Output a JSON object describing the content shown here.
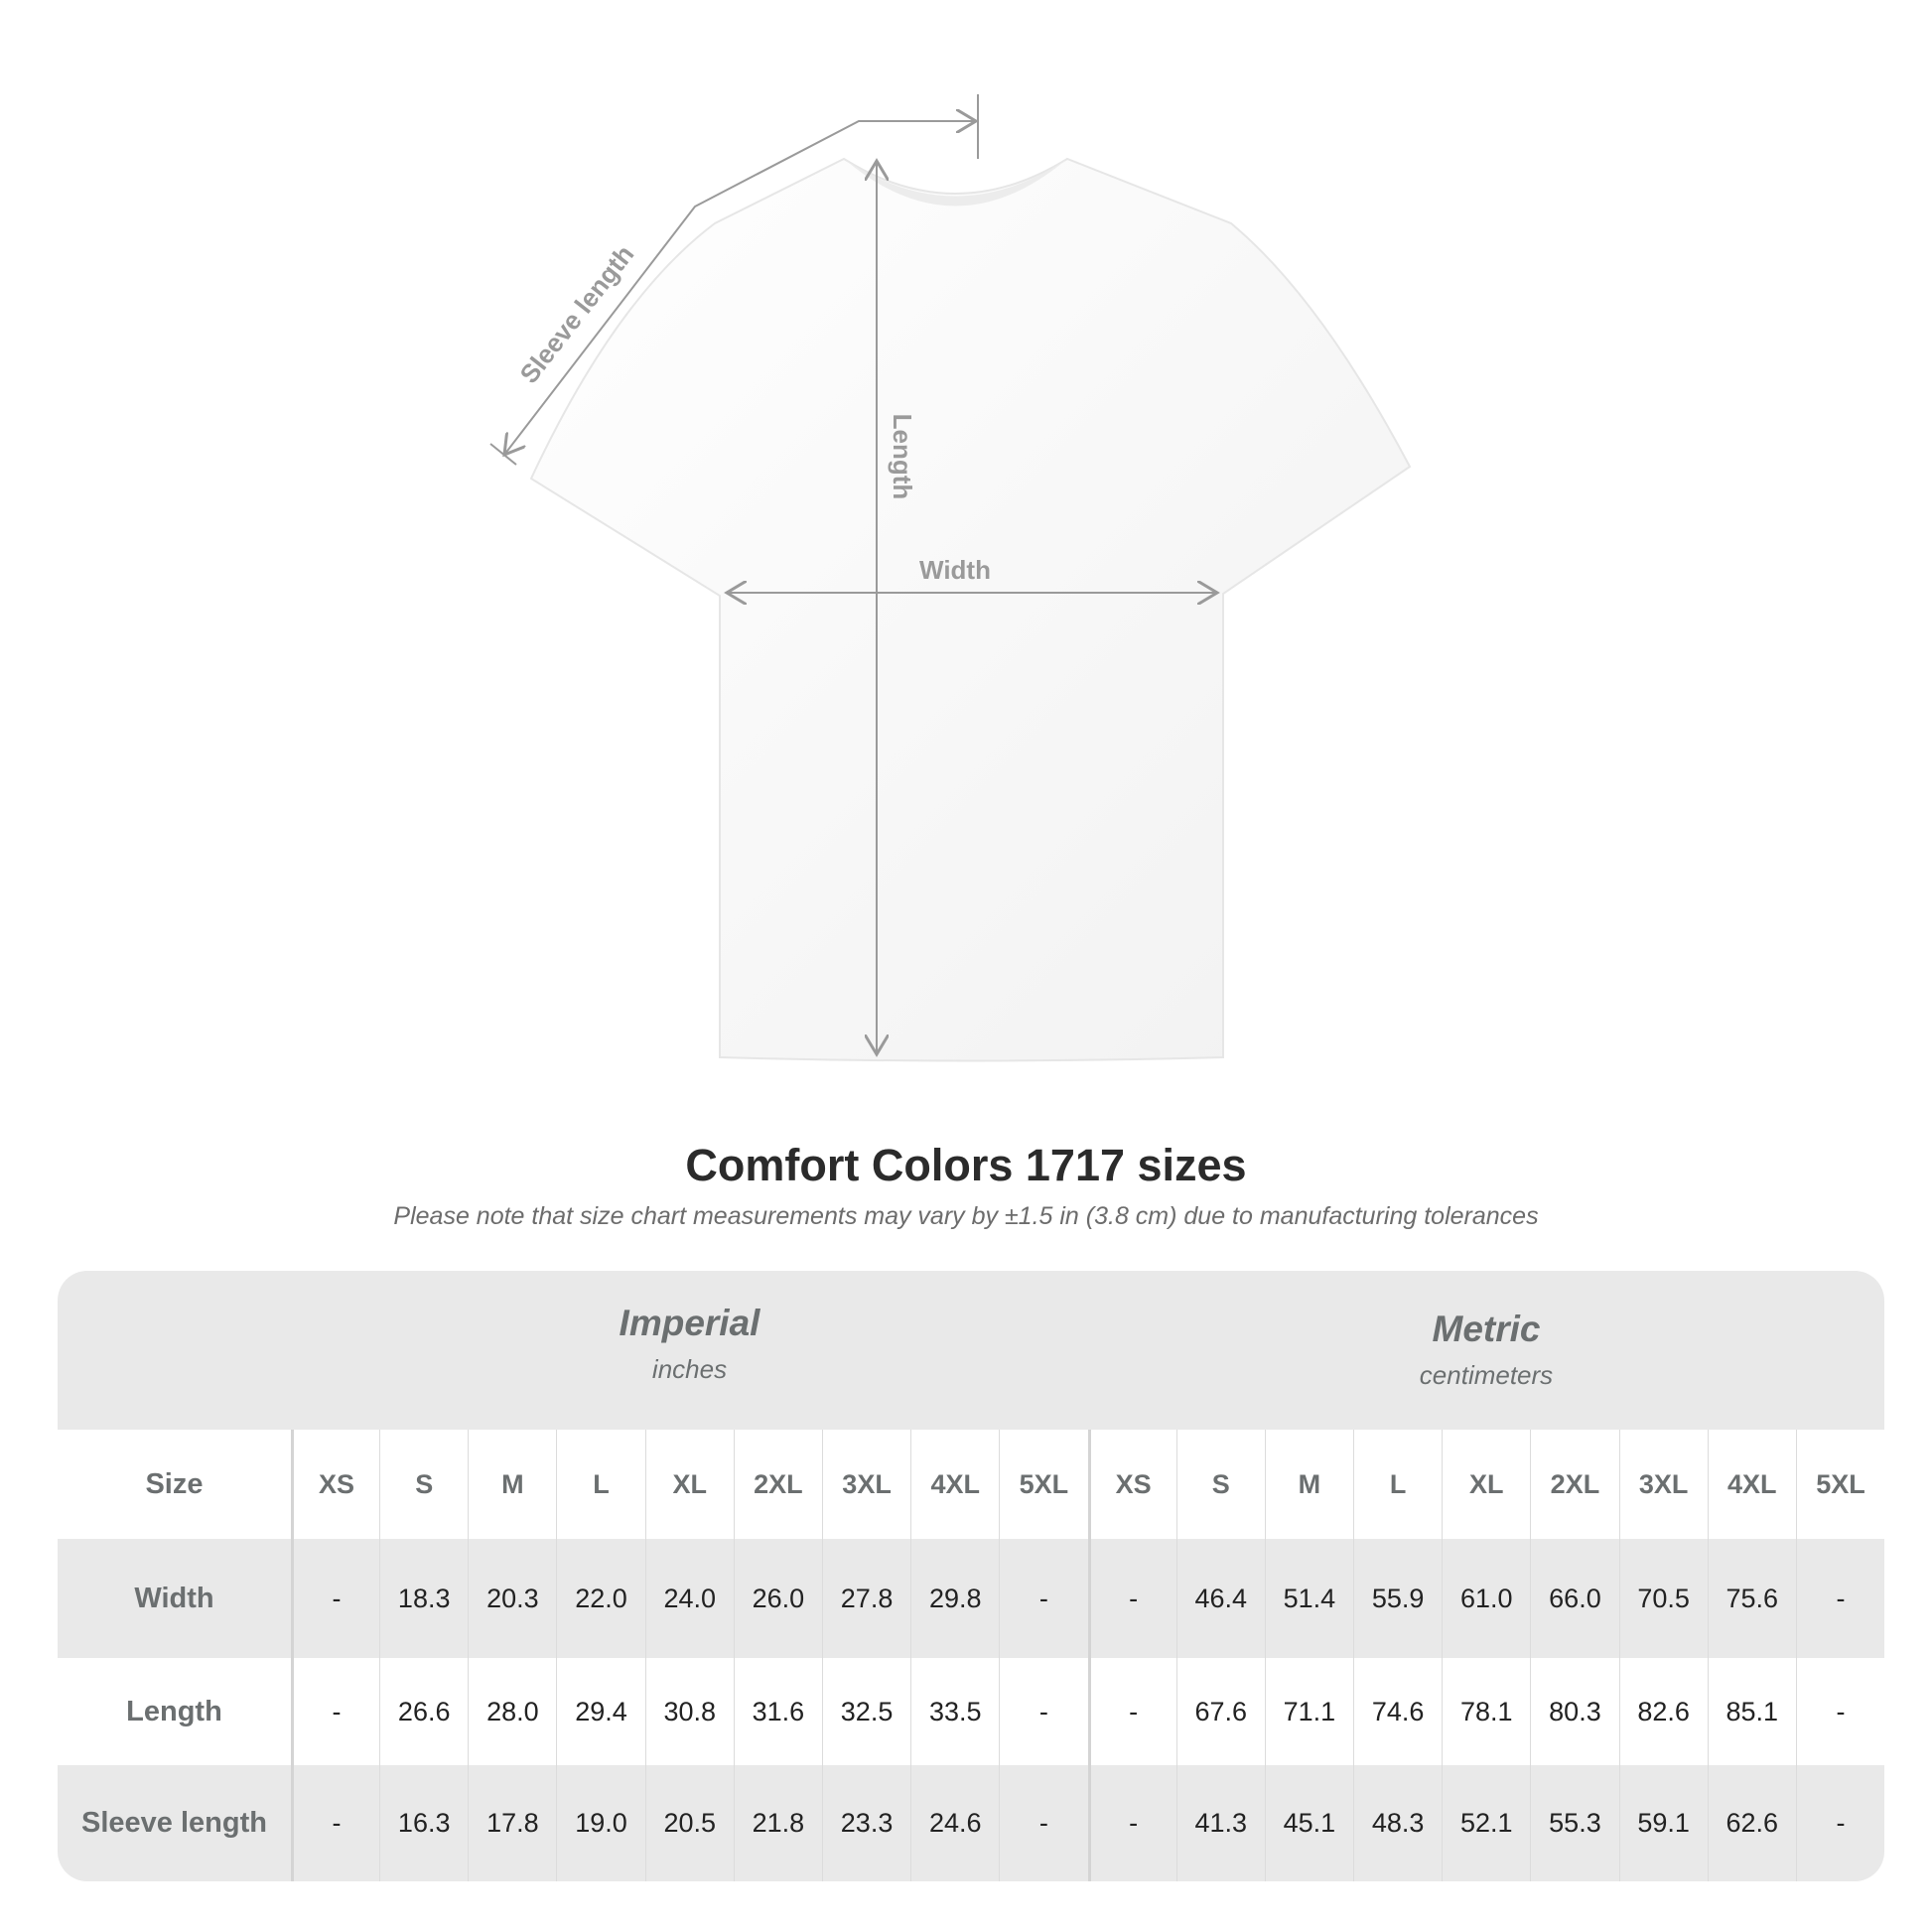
{
  "diagram": {
    "labels": {
      "sleeve": "Sleeve length",
      "length": "Length",
      "width": "Width"
    },
    "line_color": "#9a9a9a"
  },
  "title": "Comfort Colors 1717 sizes",
  "note": "Please note that size chart measurements may vary by ±1.5 in (3.8 cm) due to manufacturing tolerances",
  "groups": {
    "imperial": {
      "name": "Imperial",
      "unit": "inches"
    },
    "metric": {
      "name": "Metric",
      "unit": "centimeters"
    }
  },
  "table": {
    "size_label": "Size",
    "sizes": [
      "XS",
      "S",
      "M",
      "L",
      "XL",
      "2XL",
      "3XL",
      "4XL",
      "5XL"
    ],
    "rows": [
      {
        "label": "Width",
        "imperial": [
          "-",
          "18.3",
          "20.3",
          "22.0",
          "24.0",
          "26.0",
          "27.8",
          "29.8",
          "-"
        ],
        "metric": [
          "-",
          "46.4",
          "51.4",
          "55.9",
          "61.0",
          "66.0",
          "70.5",
          "75.6",
          "-"
        ]
      },
      {
        "label": "Length",
        "imperial": [
          "-",
          "26.6",
          "28.0",
          "29.4",
          "30.8",
          "31.6",
          "32.5",
          "33.5",
          "-"
        ],
        "metric": [
          "-",
          "67.6",
          "71.1",
          "74.6",
          "78.1",
          "80.3",
          "82.6",
          "85.1",
          "-"
        ]
      },
      {
        "label": "Sleeve length",
        "imperial": [
          "-",
          "16.3",
          "17.8",
          "19.0",
          "20.5",
          "21.8",
          "23.3",
          "24.6",
          "-"
        ],
        "metric": [
          "-",
          "41.3",
          "45.1",
          "48.3",
          "52.1",
          "55.3",
          "59.1",
          "62.6",
          "-"
        ]
      }
    ]
  }
}
